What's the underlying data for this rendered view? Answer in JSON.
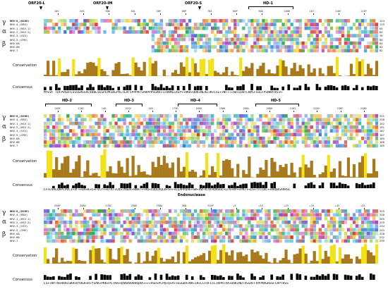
{
  "families": {
    "gamma": "γ",
    "alpha": "α",
    "beta": "β"
  },
  "sequences": [
    {
      "label": "HHV-8_(KSHV)",
      "fam": "gamma"
    },
    {
      "label": "HHV-4_(EBV)",
      "fam": "gamma"
    },
    {
      "label": "HHV-1_(HSV-1)",
      "fam": "alpha"
    },
    {
      "label": "HHV-2_(HSV-2)",
      "fam": "alpha"
    },
    {
      "label": "HHV-3_(VZV)",
      "fam": "alpha"
    },
    {
      "label": "HHV-5_(CMV)",
      "fam": "beta"
    },
    {
      "label": "HHV-6A",
      "fam": "beta"
    },
    {
      "label": "HHV-6B",
      "fam": "beta"
    },
    {
      "label": "HHV-7",
      "fam": "beta"
    }
  ],
  "labels": {
    "conservation": "Conservation",
    "consensus": "Consensus",
    "endonuclease": "Endonuclease"
  },
  "orfs": [
    "ORF20-L",
    "ORF20-IM",
    "ORF20-S"
  ],
  "domains": [
    "HD-1",
    "HD-2",
    "HD-3",
    "HD-4",
    "HD-5"
  ],
  "blocks": [
    {
      "positions": [
        "10V",
        "20S",
        "30D",
        "40L",
        "50P",
        "60P",
        "70A",
        "80P",
        "90A",
        "100K",
        "107-",
        "110F",
        "115P"
      ],
      "ends": [
        "124",
        "119",
        "65",
        "85",
        "76",
        "90",
        "84",
        "84",
        "82"
      ],
      "consensus": "MYEVF TDFPVSDFLGSSGRSSVLVDDLSESPLPKSHLPVLTEAFSPPPRTSARPPPSGRR+++ARMLLRLP++RKR+QOK+NLRI+K+LSL++NF+T+AD+LOOTLNPLFGSLFPSNRATRIV+"
    },
    {
      "positions": [
        "130E",
        "138C",
        "146-",
        "153V",
        "163-",
        "175R",
        "180Q",
        "190H",
        "198A",
        "208K",
        "218S",
        "228V",
        "238F",
        "248R"
      ],
      "ends": [
        "251",
        "238",
        "192",
        "191",
        "187",
        "167",
        "185",
        "188",
        "185"
      ],
      "consensus": "LFFEVRLQRPLPDCI+VF++DH+K+E+FVCY++EFKT+LKSTMSDV+HNAT++AQ+LQQLRQLR+S+++LLAPPQAE+SW+VVFVLVFRQRSGL+LFV+RP++PKT++LS+TFLCDL++RRQDGAVRSL"
    },
    {
      "positions": [
        "258P",
        "268G",
        "278S",
        "288G",
        "298A",
        "308-",
        "315P",
        "+5",
        "+15",
        "+25",
        "+35",
        "+45",
        "+55"
      ],
      "ends": [
        "325",
        "310",
        "269",
        "229",
        "234",
        "243",
        "228",
        "232",
        "239"
      ],
      "consensus": "LS++NYTN+RRACGKR+RYRGR+R+YSAK+PKK+PLTKR+QARRAARRRQAA++++ASD+PCPQ+Q+A++EGGDV+NR+IR+LCFVFL+L+RPRTAA+DAKINQTVSSAFFVPPRRGRGSFCRPTRSS"
    }
  ]
}
